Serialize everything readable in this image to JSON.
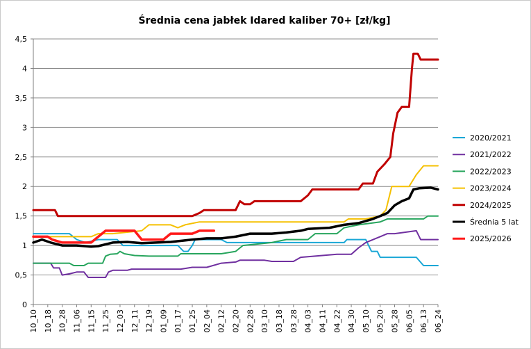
{
  "chart_data": {
    "type": "line",
    "title": "Średnia cena jabłek Idared kaliber 70+ [zł/kg]",
    "xlabel": "",
    "ylabel": "",
    "ylim": [
      0,
      4.5
    ],
    "yticks": [
      0,
      0.5,
      1,
      1.5,
      2,
      2.5,
      3,
      3.5,
      4,
      4.5
    ],
    "ytick_labels": [
      "0",
      "0,5",
      "1",
      "1,5",
      "2",
      "2,5",
      "3",
      "3,5",
      "4",
      "4,5"
    ],
    "categories": [
      "10_10",
      "10_18",
      "10_28",
      "11_06",
      "11_15",
      "11_25",
      "12_03",
      "12_11",
      "12_19",
      "01_09",
      "01_17",
      "01_25",
      "02_04",
      "02_12",
      "02_20",
      "02_28",
      "03_10",
      "03_18",
      "03_28",
      "04_03",
      "04_11",
      "04_22",
      "04_30",
      "05_10",
      "05_20",
      "05_28",
      "06_05",
      "06_13",
      "06_24"
    ],
    "grid": "horizontal",
    "legend_position": "right",
    "series": [
      {
        "name": "2020/2021",
        "color": "#1AA7D6",
        "width": 2,
        "points": [
          [
            0,
            1.2
          ],
          [
            2.5,
            1.2
          ],
          [
            3.0,
            1.1
          ],
          [
            3.6,
            1.05
          ],
          [
            4.5,
            1.1
          ],
          [
            5.8,
            1.1
          ],
          [
            6.2,
            1.0
          ],
          [
            8.0,
            1.0
          ],
          [
            10.0,
            1.0
          ],
          [
            10.4,
            0.9
          ],
          [
            10.7,
            0.9
          ],
          [
            11.0,
            1.0
          ],
          [
            11.2,
            1.1
          ],
          [
            13.0,
            1.1
          ],
          [
            13.4,
            1.05
          ],
          [
            21.5,
            1.05
          ],
          [
            21.7,
            1.1
          ],
          [
            23.0,
            1.1
          ],
          [
            23.4,
            0.9
          ],
          [
            23.8,
            0.9
          ],
          [
            24.0,
            0.8
          ],
          [
            26.5,
            0.8
          ],
          [
            27.0,
            0.66
          ],
          [
            28.0,
            0.66
          ]
        ]
      },
      {
        "name": "2021/2022",
        "color": "#7030A0",
        "width": 2,
        "points": [
          [
            0,
            0.7
          ],
          [
            1.2,
            0.7
          ],
          [
            1.4,
            0.62
          ],
          [
            1.8,
            0.62
          ],
          [
            2.0,
            0.5
          ],
          [
            2.5,
            0.52
          ],
          [
            3.0,
            0.55
          ],
          [
            3.5,
            0.55
          ],
          [
            3.8,
            0.46
          ],
          [
            4.5,
            0.46
          ],
          [
            5.0,
            0.46
          ],
          [
            5.2,
            0.55
          ],
          [
            5.5,
            0.58
          ],
          [
            6.5,
            0.58
          ],
          [
            6.8,
            0.6
          ],
          [
            10.0,
            0.6
          ],
          [
            10.2,
            0.6
          ],
          [
            11.0,
            0.63
          ],
          [
            12.0,
            0.63
          ],
          [
            13.0,
            0.7
          ],
          [
            14.0,
            0.72
          ],
          [
            14.3,
            0.75
          ],
          [
            16.0,
            0.75
          ],
          [
            16.5,
            0.73
          ],
          [
            18.0,
            0.73
          ],
          [
            18.5,
            0.8
          ],
          [
            19.5,
            0.82
          ],
          [
            21.0,
            0.85
          ],
          [
            22.0,
            0.85
          ],
          [
            22.5,
            0.96
          ],
          [
            23.0,
            1.05
          ],
          [
            24.0,
            1.15
          ],
          [
            24.5,
            1.2
          ],
          [
            25.0,
            1.2
          ],
          [
            26.5,
            1.25
          ],
          [
            26.8,
            1.1
          ],
          [
            28.0,
            1.1
          ]
        ]
      },
      {
        "name": "2022/2023",
        "color": "#27A55D",
        "width": 2,
        "points": [
          [
            0,
            0.7
          ],
          [
            2.5,
            0.7
          ],
          [
            2.8,
            0.66
          ],
          [
            3.5,
            0.66
          ],
          [
            3.8,
            0.7
          ],
          [
            4.8,
            0.7
          ],
          [
            5.0,
            0.82
          ],
          [
            5.3,
            0.85
          ],
          [
            5.8,
            0.86
          ],
          [
            6.0,
            0.9
          ],
          [
            6.3,
            0.86
          ],
          [
            7.0,
            0.83
          ],
          [
            8.0,
            0.82
          ],
          [
            10.0,
            0.82
          ],
          [
            10.2,
            0.86
          ],
          [
            13.0,
            0.86
          ],
          [
            14.0,
            0.9
          ],
          [
            14.5,
            1.0
          ],
          [
            16.5,
            1.05
          ],
          [
            17.5,
            1.1
          ],
          [
            19.0,
            1.1
          ],
          [
            19.5,
            1.2
          ],
          [
            21.0,
            1.2
          ],
          [
            21.5,
            1.3
          ],
          [
            22.5,
            1.35
          ],
          [
            24.0,
            1.4
          ],
          [
            24.5,
            1.45
          ],
          [
            27.0,
            1.45
          ],
          [
            27.3,
            1.5
          ],
          [
            28.0,
            1.5
          ]
        ]
      },
      {
        "name": "2023/2024",
        "color": "#F5C000",
        "width": 2,
        "points": [
          [
            0,
            1.15
          ],
          [
            1.5,
            1.15
          ],
          [
            2.0,
            1.15
          ],
          [
            4.0,
            1.15
          ],
          [
            4.5,
            1.2
          ],
          [
            5.0,
            1.2
          ],
          [
            5.5,
            1.2
          ],
          [
            7.5,
            1.25
          ],
          [
            8.0,
            1.35
          ],
          [
            9.5,
            1.35
          ],
          [
            10.0,
            1.3
          ],
          [
            10.5,
            1.35
          ],
          [
            11.5,
            1.4
          ],
          [
            12.0,
            1.4
          ],
          [
            21.5,
            1.4
          ],
          [
            21.8,
            1.45
          ],
          [
            23.0,
            1.45
          ],
          [
            24.0,
            1.5
          ],
          [
            24.4,
            1.6
          ],
          [
            24.8,
            2.0
          ],
          [
            26.0,
            2.0
          ],
          [
            26.5,
            2.2
          ],
          [
            27.0,
            2.35
          ],
          [
            28.0,
            2.35
          ]
        ]
      },
      {
        "name": "2024/2025",
        "color": "#C00000",
        "width": 3,
        "points": [
          [
            0,
            1.6
          ],
          [
            1.5,
            1.6
          ],
          [
            1.7,
            1.5
          ],
          [
            11.0,
            1.5
          ],
          [
            11.5,
            1.55
          ],
          [
            11.8,
            1.6
          ],
          [
            14.0,
            1.6
          ],
          [
            14.3,
            1.75
          ],
          [
            14.6,
            1.7
          ],
          [
            15.0,
            1.7
          ],
          [
            15.3,
            1.75
          ],
          [
            18.5,
            1.75
          ],
          [
            19.0,
            1.85
          ],
          [
            19.3,
            1.95
          ],
          [
            22.5,
            1.95
          ],
          [
            22.8,
            2.05
          ],
          [
            23.5,
            2.05
          ],
          [
            23.8,
            2.25
          ],
          [
            24.3,
            2.38
          ],
          [
            24.7,
            2.5
          ],
          [
            24.9,
            2.9
          ],
          [
            25.2,
            3.25
          ],
          [
            25.5,
            3.35
          ],
          [
            26.0,
            3.35
          ],
          [
            26.2,
            4.0
          ],
          [
            26.3,
            4.25
          ],
          [
            26.6,
            4.25
          ],
          [
            26.8,
            4.15
          ],
          [
            28.0,
            4.15
          ]
        ]
      },
      {
        "name": "Średnia 5 lat",
        "color": "#000000",
        "width": 3.5,
        "points": [
          [
            0,
            1.05
          ],
          [
            0.6,
            1.1
          ],
          [
            1.2,
            1.05
          ],
          [
            2.0,
            1.0
          ],
          [
            3.0,
            1.0
          ],
          [
            4.0,
            0.98
          ],
          [
            4.5,
            0.99
          ],
          [
            5.0,
            1.02
          ],
          [
            5.5,
            1.05
          ],
          [
            6.5,
            1.06
          ],
          [
            7.5,
            1.04
          ],
          [
            8.5,
            1.05
          ],
          [
            9.5,
            1.06
          ],
          [
            10.3,
            1.08
          ],
          [
            11.0,
            1.1
          ],
          [
            12.0,
            1.12
          ],
          [
            13.0,
            1.12
          ],
          [
            14.0,
            1.15
          ],
          [
            15.0,
            1.2
          ],
          [
            16.5,
            1.2
          ],
          [
            17.5,
            1.22
          ],
          [
            18.5,
            1.25
          ],
          [
            19.0,
            1.28
          ],
          [
            20.5,
            1.3
          ],
          [
            21.5,
            1.35
          ],
          [
            22.5,
            1.38
          ],
          [
            23.5,
            1.45
          ],
          [
            24.0,
            1.5
          ],
          [
            24.5,
            1.55
          ],
          [
            25.0,
            1.68
          ],
          [
            25.5,
            1.75
          ],
          [
            26.0,
            1.8
          ],
          [
            26.3,
            1.95
          ],
          [
            26.7,
            1.97
          ],
          [
            27.5,
            1.98
          ],
          [
            28.0,
            1.95
          ]
        ]
      },
      {
        "name": "2025/2026",
        "color": "#FF1A1A",
        "width": 3.5,
        "points": [
          [
            0,
            1.15
          ],
          [
            1.0,
            1.15
          ],
          [
            1.3,
            1.1
          ],
          [
            2.0,
            1.05
          ],
          [
            3.0,
            1.05
          ],
          [
            4.0,
            1.05
          ],
          [
            4.5,
            1.15
          ],
          [
            5.0,
            1.25
          ],
          [
            7.0,
            1.25
          ],
          [
            7.5,
            1.1
          ],
          [
            9.0,
            1.1
          ],
          [
            9.5,
            1.2
          ],
          [
            10.0,
            1.2
          ],
          [
            11.0,
            1.2
          ],
          [
            11.5,
            1.25
          ],
          [
            12.5,
            1.25
          ]
        ]
      }
    ]
  }
}
